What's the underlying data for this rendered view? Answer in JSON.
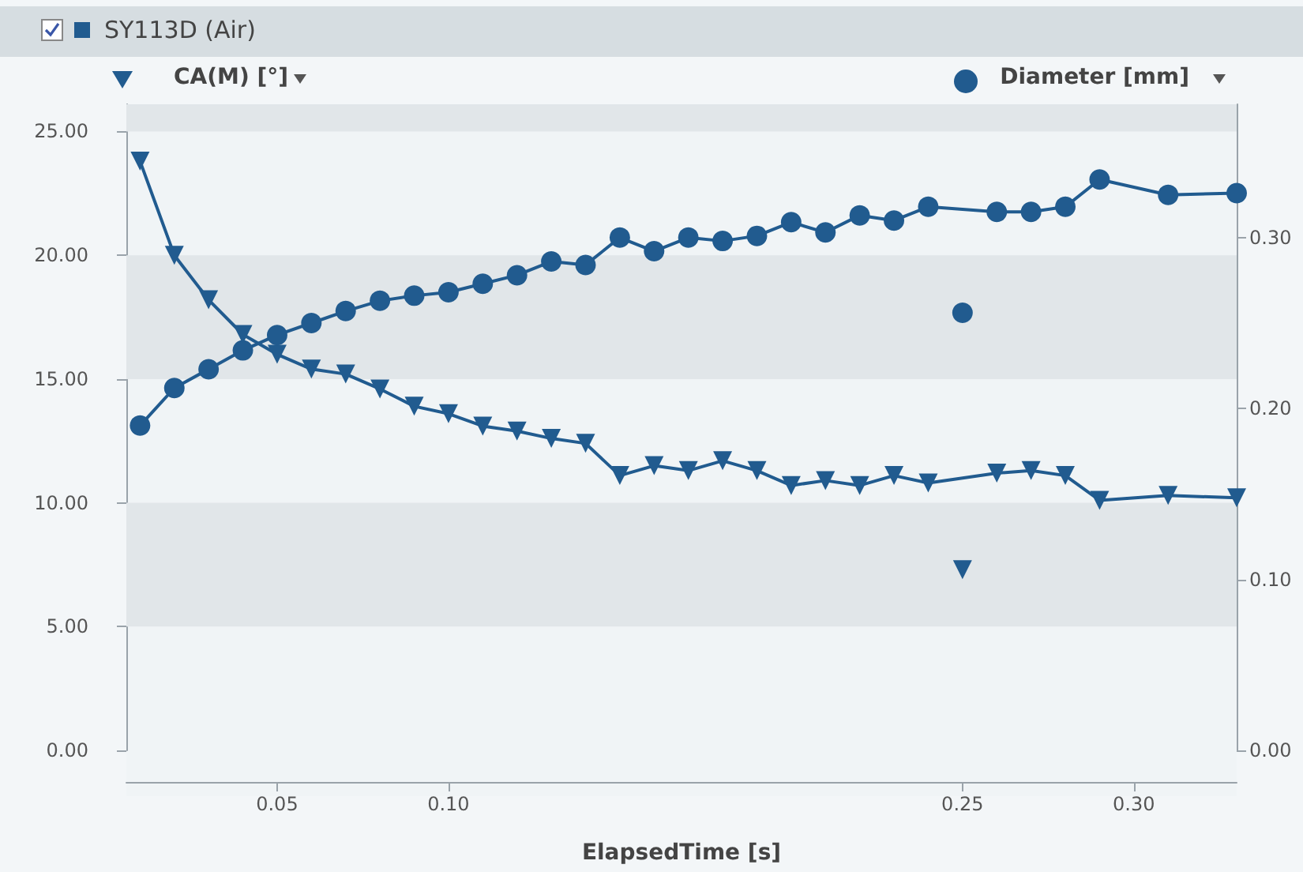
{
  "chart_data": {
    "type": "line",
    "title": "SY113D (Air)",
    "xlabel": "ElapsedTime [s]",
    "ylabel": "CA(M) [°]",
    "y2label": "Diameter [mm]",
    "xlim": [
      0.006,
      0.33
    ],
    "xticks": [
      {
        "value": 0.05,
        "label": "0.05"
      },
      {
        "value": 0.1,
        "label": "0.10"
      },
      {
        "value": 0.25,
        "label": "0.25"
      },
      {
        "value": 0.3,
        "label": "0.30"
      }
    ],
    "ylim": [
      0,
      26.1
    ],
    "yticks": [
      {
        "value": 0,
        "label": "0.00"
      },
      {
        "value": 5,
        "label": "5.00"
      },
      {
        "value": 10,
        "label": "10.00"
      },
      {
        "value": 15,
        "label": "15.00"
      },
      {
        "value": 20,
        "label": "20.00"
      },
      {
        "value": 25,
        "label": "25.00"
      }
    ],
    "y2lim": [
      0,
      0.378
    ],
    "y2ticks": [
      {
        "value": 0,
        "label": "0.00"
      },
      {
        "value": 0.1,
        "label": "0.10"
      },
      {
        "value": 0.2,
        "label": "0.20"
      },
      {
        "value": 0.3,
        "label": "0.30"
      }
    ],
    "bands": [
      {
        "axis": "y",
        "from": 5,
        "to": 10,
        "color": "#e1e6e9"
      },
      {
        "axis": "y",
        "from": 15,
        "to": 20,
        "color": "#e1e6e9"
      },
      {
        "axis": "y",
        "from": 25,
        "to": 26.1,
        "color": "#e1e6e9"
      }
    ],
    "series": [
      {
        "marker": "triangle",
        "color": "#215b8f",
        "x": [
          0.01,
          0.02,
          0.03,
          0.04,
          0.05,
          0.06,
          0.07,
          0.08,
          0.09,
          0.1,
          0.11,
          0.12,
          0.13,
          0.14,
          0.15,
          0.16,
          0.17,
          0.18,
          0.19,
          0.2,
          0.21,
          0.22,
          0.23,
          0.24,
          0.26,
          0.27,
          0.28,
          0.29,
          0.31,
          0.33
        ],
        "values": [
          23.8,
          20.0,
          18.2,
          16.8,
          16.0,
          15.4,
          15.2,
          14.6,
          13.9,
          13.6,
          13.1,
          12.9,
          12.6,
          12.4,
          11.1,
          11.5,
          11.3,
          11.7,
          11.3,
          10.7,
          10.9,
          10.7,
          11.1,
          10.8,
          11.2,
          11.3,
          11.1,
          10.1,
          10.3,
          10.2
        ]
      },
      {
        "marker": "circle",
        "axis": "y2",
        "color": "#215b8f",
        "x": [
          0.01,
          0.02,
          0.03,
          0.04,
          0.05,
          0.06,
          0.07,
          0.08,
          0.09,
          0.1,
          0.11,
          0.12,
          0.13,
          0.14,
          0.15,
          0.16,
          0.17,
          0.18,
          0.19,
          0.2,
          0.21,
          0.22,
          0.23,
          0.24,
          0.26,
          0.27,
          0.28,
          0.29,
          0.31,
          0.33
        ],
        "values": [
          0.19,
          0.212,
          0.223,
          0.234,
          0.243,
          0.25,
          0.257,
          0.263,
          0.266,
          0.268,
          0.273,
          0.278,
          0.286,
          0.284,
          0.3,
          0.292,
          0.3,
          0.298,
          0.301,
          0.309,
          0.303,
          0.313,
          0.31,
          0.318,
          0.315,
          0.315,
          0.318,
          0.334,
          0.325,
          0.326
        ]
      },
      {
        "type": "scatter",
        "marker": "triangle",
        "color": "#215b8f",
        "x": [
          0.25
        ],
        "values": [
          7.3
        ]
      },
      {
        "type": "scatter",
        "marker": "circle",
        "axis": "y2",
        "color": "#215b8f",
        "x": [
          0.25
        ],
        "values": [
          0.256
        ]
      }
    ]
  }
}
